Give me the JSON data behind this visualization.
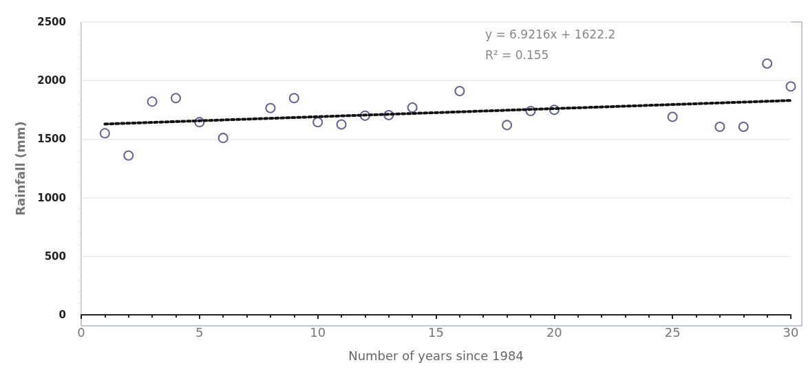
{
  "chart_data": {
    "type": "scatter",
    "xlabel": "Number of years since 1984",
    "ylabel": "Rainfall (mm)",
    "x": [
      1,
      2,
      3,
      4,
      5,
      6,
      8,
      9,
      10,
      11,
      12,
      13,
      14,
      16,
      18,
      19,
      20,
      25,
      27,
      28,
      29,
      30
    ],
    "series": [
      {
        "color": "#3d3d80",
        "marker": "circle",
        "values": [
          1550,
          1360,
          1820,
          1850,
          1645,
          1510,
          1765,
          1850,
          1645,
          1625,
          1700,
          1705,
          1770,
          1910,
          1620,
          1740,
          1750,
          1690,
          1605,
          1605,
          2145,
          1950
        ]
      },
      {
        "type": "line",
        "color": "#111111",
        "line_style": "dotted",
        "marker": "none",
        "x": [
          1,
          30
        ],
        "values": [
          1629,
          1830
        ]
      }
    ],
    "annotations": [
      "y = 6.9216x + 1622.2",
      "R² = 0.155"
    ],
    "xlim": [
      0,
      30
    ],
    "xticks": [
      0,
      5,
      10,
      15,
      20,
      25,
      30
    ],
    "ylim": [
      0,
      2500
    ],
    "yticks": [
      0,
      500,
      1000,
      1500,
      2000,
      2500
    ],
    "grid": "y"
  }
}
